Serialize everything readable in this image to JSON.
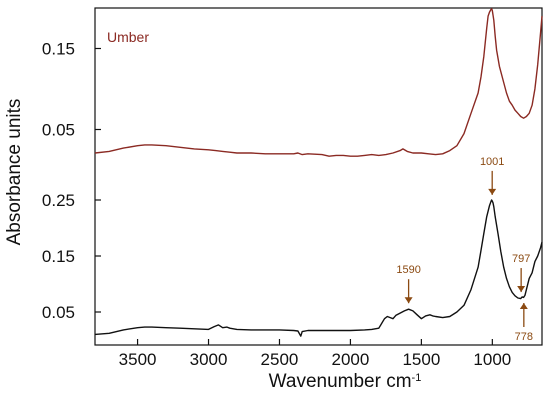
{
  "chart_data": {
    "type": "line",
    "xlabel": "Wavenumber cm",
    "xlabel_sup": "-1",
    "ylabel": "Absorbance units",
    "x_reversed": true,
    "xlim": [
      3800,
      650
    ],
    "x_ticks": [
      3500,
      3000,
      2500,
      2000,
      1500,
      1000
    ],
    "grid": false,
    "panels": [
      {
        "ylim": [
          0.0,
          0.2
        ],
        "y_ticks": [
          0.05,
          0.15
        ],
        "y_tick_labels": [
          "0.05",
          "0.15"
        ],
        "series": [
          {
            "name": "Umber",
            "color": "#8b2a23",
            "x": [
              3800,
              3700,
              3600,
              3500,
              3450,
              3400,
              3300,
              3200,
              3100,
              3000,
              2950,
              2900,
              2850,
              2800,
              2700,
              2600,
              2500,
              2400,
              2370,
              2340,
              2300,
              2200,
              2150,
              2100,
              2050,
              2000,
              1950,
              1900,
              1850,
              1800,
              1750,
              1700,
              1650,
              1630,
              1600,
              1560,
              1500,
              1450,
              1400,
              1350,
              1300,
              1250,
              1200,
              1150,
              1100,
              1080,
              1060,
              1040,
              1030,
              1020,
              1010,
              1005,
              1000,
              990,
              980,
              970,
              950,
              920,
              900,
              880,
              860,
              840,
              820,
              800,
              780,
              760,
              740,
              720,
              700,
              680,
              660,
              650
            ],
            "y": [
              0.021,
              0.023,
              0.027,
              0.03,
              0.031,
              0.031,
              0.03,
              0.028,
              0.026,
              0.025,
              0.024,
              0.023,
              0.022,
              0.021,
              0.021,
              0.02,
              0.02,
              0.02,
              0.021,
              0.019,
              0.02,
              0.019,
              0.017,
              0.018,
              0.018,
              0.017,
              0.017,
              0.018,
              0.019,
              0.018,
              0.019,
              0.021,
              0.024,
              0.026,
              0.023,
              0.021,
              0.021,
              0.02,
              0.019,
              0.02,
              0.024,
              0.03,
              0.045,
              0.07,
              0.095,
              0.115,
              0.14,
              0.175,
              0.19,
              0.195,
              0.198,
              0.199,
              0.197,
              0.185,
              0.165,
              0.148,
              0.128,
              0.108,
              0.095,
              0.085,
              0.08,
              0.074,
              0.07,
              0.066,
              0.064,
              0.066,
              0.07,
              0.08,
              0.1,
              0.13,
              0.17,
              0.19
            ]
          }
        ]
      },
      {
        "ylim": [
          0.0,
          0.3
        ],
        "y_ticks": [
          0.05,
          0.15,
          0.25
        ],
        "y_tick_labels": [
          "0.05",
          "0.15",
          "0.25"
        ],
        "series": [
          {
            "color": "#111111",
            "x": [
              3800,
              3700,
              3600,
              3500,
              3450,
              3400,
              3300,
              3200,
              3100,
              3000,
              2960,
              2930,
              2900,
              2870,
              2850,
              2800,
              2700,
              2600,
              2500,
              2400,
              2370,
              2350,
              2340,
              2300,
              2200,
              2100,
              2000,
              1900,
              1850,
              1800,
              1760,
              1740,
              1720,
              1700,
              1680,
              1650,
              1620,
              1590,
              1560,
              1530,
              1500,
              1470,
              1440,
              1420,
              1400,
              1350,
              1300,
              1250,
              1200,
              1150,
              1100,
              1080,
              1060,
              1040,
              1020,
              1010,
              1005,
              1000,
              995,
              990,
              980,
              960,
              940,
              920,
              900,
              880,
              860,
              840,
              820,
              800,
              790,
              780,
              770,
              760,
              740,
              720,
              700,
              680,
              660,
              650
            ],
            "y": [
              0.01,
              0.012,
              0.018,
              0.022,
              0.023,
              0.023,
              0.022,
              0.021,
              0.02,
              0.019,
              0.024,
              0.027,
              0.022,
              0.023,
              0.021,
              0.019,
              0.018,
              0.018,
              0.018,
              0.017,
              0.016,
              0.007,
              0.015,
              0.017,
              0.017,
              0.017,
              0.017,
              0.018,
              0.019,
              0.021,
              0.038,
              0.042,
              0.04,
              0.038,
              0.044,
              0.048,
              0.052,
              0.055,
              0.052,
              0.045,
              0.038,
              0.043,
              0.045,
              0.043,
              0.042,
              0.04,
              0.042,
              0.05,
              0.062,
              0.09,
              0.13,
              0.16,
              0.19,
              0.22,
              0.24,
              0.247,
              0.25,
              0.248,
              0.245,
              0.238,
              0.22,
              0.19,
              0.158,
              0.13,
              0.11,
              0.095,
              0.085,
              0.079,
              0.075,
              0.074,
              0.077,
              0.076,
              0.08,
              0.09,
              0.11,
              0.12,
              0.14,
              0.15,
              0.165,
              0.175
            ]
          }
        ]
      }
    ],
    "annotations": [
      {
        "label": "1001",
        "x": 1001,
        "panel": 1,
        "direction": "down",
        "color": "#8b4a12"
      },
      {
        "label": "1590",
        "x": 1590,
        "panel": 1,
        "direction": "down",
        "color": "#8b4a12"
      },
      {
        "label": "797",
        "x": 797,
        "panel": 1,
        "direction": "down",
        "color": "#8b4a12"
      },
      {
        "label": "778",
        "x": 778,
        "panel": 1,
        "direction": "up",
        "color": "#8b4a12"
      }
    ]
  }
}
